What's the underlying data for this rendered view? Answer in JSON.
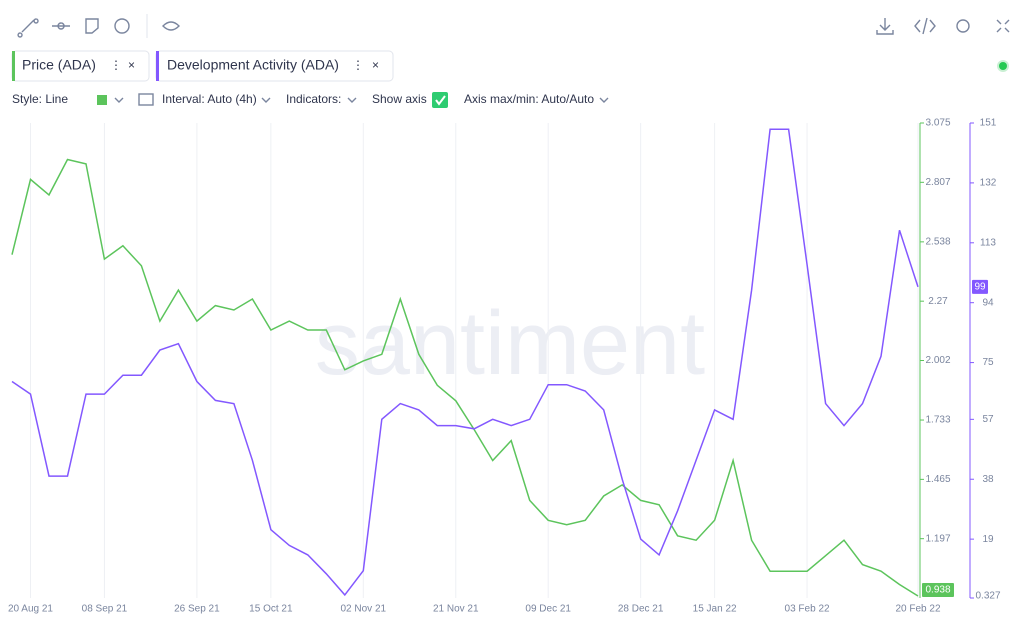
{
  "toolbar": {
    "style": "Style: Line",
    "interval": "Interval: Auto (4h)",
    "indicators": "Indicators:",
    "show_axis": "Show axis",
    "axis_range": "Axis max/min: Auto/Auto"
  },
  "watermark": "santiment",
  "chart_data": {
    "type": "line",
    "categories": [
      null,
      "20 Aug 21",
      null,
      null,
      null,
      "08 Sep 21",
      null,
      null,
      null,
      null,
      "26 Sep 21",
      null,
      null,
      null,
      "15 Oct 21",
      null,
      null,
      null,
      null,
      "02 Nov 21",
      null,
      null,
      null,
      null,
      "21 Nov 21",
      null,
      null,
      null,
      null,
      "09 Dec 21",
      null,
      null,
      null,
      null,
      "28 Dec 21",
      null,
      null,
      null,
      "15 Jan 22",
      null,
      null,
      null,
      null,
      "03 Feb 22",
      null,
      null,
      null,
      null,
      null,
      "20 Feb 22"
    ],
    "series": [
      {
        "name": "Price (ADA)",
        "color": "#5cc45c",
        "axis": "y",
        "values": [
          2.48,
          2.82,
          2.75,
          2.91,
          2.89,
          2.46,
          2.52,
          2.43,
          2.18,
          2.32,
          2.18,
          2.25,
          2.23,
          2.28,
          2.14,
          2.18,
          2.14,
          2.14,
          1.96,
          2.0,
          2.03,
          2.28,
          2.03,
          1.89,
          1.82,
          1.69,
          1.55,
          1.64,
          1.37,
          1.28,
          1.26,
          1.28,
          1.39,
          1.44,
          1.37,
          1.35,
          1.21,
          1.19,
          1.28,
          1.55,
          1.19,
          1.05,
          1.05,
          1.05,
          1.12,
          1.19,
          1.08,
          1.05,
          0.99,
          0.938
        ]
      },
      {
        "name": "Development Activity (ADA)",
        "color": "#8358ff",
        "axis": "y2",
        "values": [
          69,
          65,
          39,
          39,
          65,
          65,
          71,
          71,
          79,
          81,
          69,
          63,
          62,
          44,
          22,
          17,
          14,
          8,
          1.3,
          9,
          57,
          62,
          60,
          55,
          55,
          54,
          57,
          55,
          57,
          68,
          68,
          66,
          60,
          38,
          19,
          14,
          28,
          44,
          60,
          57,
          98,
          149,
          149,
          106,
          62,
          55,
          62,
          77,
          117,
          99
        ]
      }
    ],
    "ylim": [
      0.929,
      3.075
    ],
    "yticks": [
      1.197,
      1.465,
      1.733,
      2.002,
      2.27,
      2.538,
      2.807,
      3.075
    ],
    "y2lim": [
      0.327,
      151
    ],
    "y2ticks": [
      0.327,
      19,
      38,
      57,
      75,
      94,
      113,
      132,
      151
    ],
    "grid": true
  }
}
